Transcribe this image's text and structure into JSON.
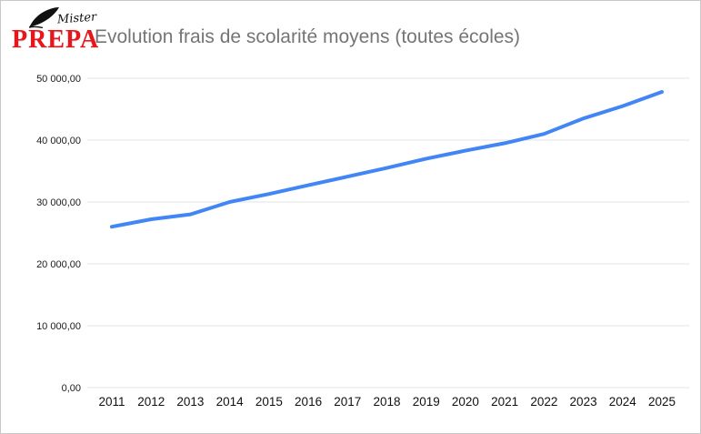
{
  "logo": {
    "brand_top": "Mister",
    "brand_bottom": "PREPA",
    "brand_color": "#e8151b"
  },
  "title_color": "#757575",
  "chart_data": {
    "type": "line",
    "title": "Evolution frais de scolarité moyens (toutes écoles)",
    "categories": [
      "2011",
      "2012",
      "2013",
      "2014",
      "2015",
      "2016",
      "2017",
      "2018",
      "2019",
      "2020",
      "2021",
      "2022",
      "2023",
      "2024",
      "2025"
    ],
    "series": [
      {
        "name": "Frais de scolarité moyens (toutes écoles)",
        "values": [
          26000,
          27200,
          28000,
          30000,
          31300,
          32700,
          34100,
          35500,
          37000,
          38300,
          39500,
          41000,
          43500,
          45500,
          47800
        ]
      }
    ],
    "xlabel": "",
    "ylabel": "",
    "ylim": [
      0,
      50000
    ],
    "ytick_step": 10000,
    "ytick_labels": [
      "0,00",
      "10 000,00",
      "20 000,00",
      "30 000,00",
      "40 000,00",
      "50 000,00"
    ],
    "grid": true,
    "legend_position": "none",
    "line_color": "#4285f4",
    "grid_color": "#e3e3e3"
  }
}
